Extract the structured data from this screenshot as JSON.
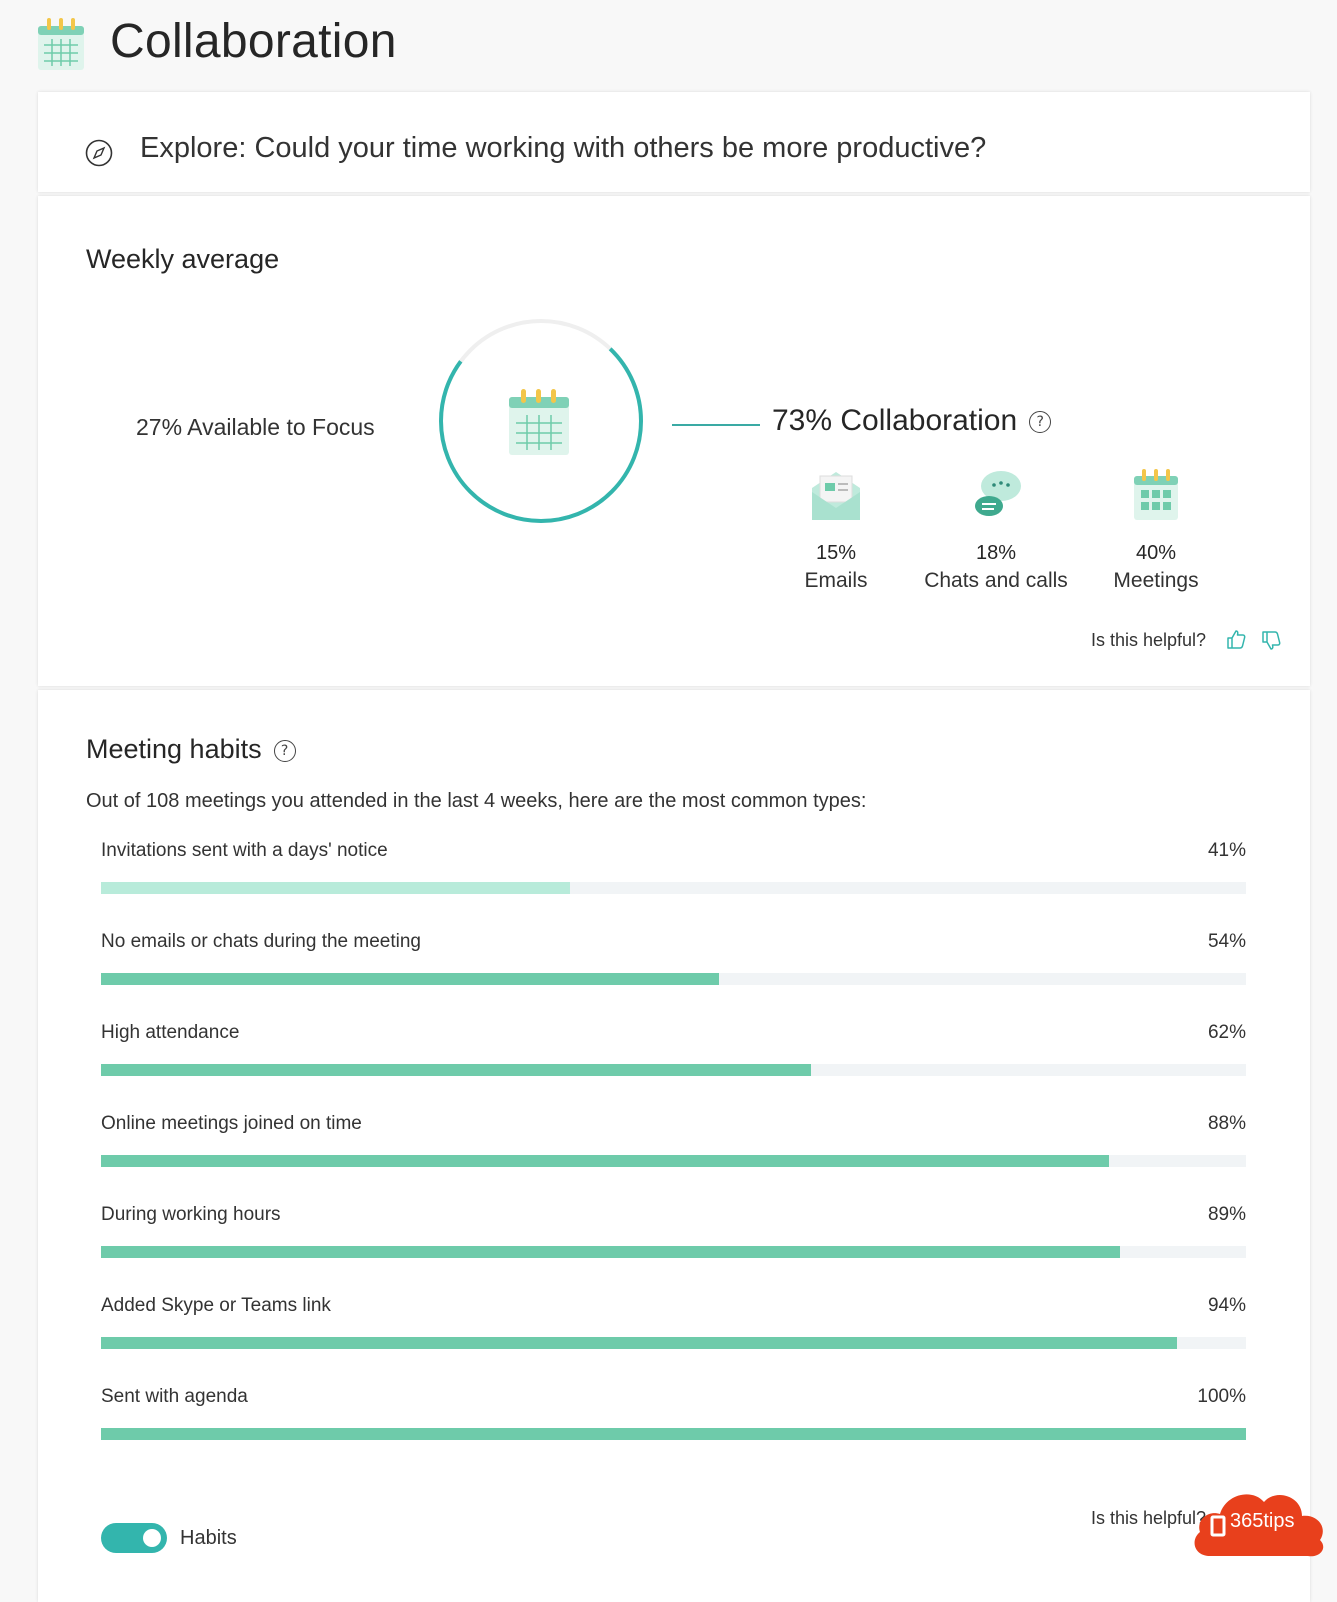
{
  "header": {
    "title": "Collaboration"
  },
  "explore": {
    "question": "Explore: Could your time working with others be more productive?"
  },
  "weekly": {
    "title": "Weekly average",
    "focus_pct": 27,
    "focus_label": "27% Available to Focus",
    "collab_pct_label": "73%",
    "collab_label": "Collaboration",
    "items": [
      {
        "pct": "15%",
        "label": "Emails"
      },
      {
        "pct": "18%",
        "label": "Chats and calls"
      },
      {
        "pct": "40%",
        "label": "Meetings"
      }
    ],
    "helpful": "Is this helpful?"
  },
  "habits": {
    "title": "Meeting habits",
    "intro": "Out of 108 meetings you attended in the last 4 weeks, here are the most common types:",
    "rows": [
      {
        "label": "Invitations sent with a days' notice",
        "value": "41%",
        "pct": 41
      },
      {
        "label": "No emails or chats during the meeting",
        "value": "54%",
        "pct": 54
      },
      {
        "label": "High attendance",
        "value": "62%",
        "pct": 62
      },
      {
        "label": "Online meetings joined on time",
        "value": "88%",
        "pct": 88
      },
      {
        "label": "During working hours",
        "value": "89%",
        "pct": 89
      },
      {
        "label": "Added Skype or Teams link",
        "value": "94%",
        "pct": 94
      },
      {
        "label": "Sent with agenda",
        "value": "100%",
        "pct": 100
      }
    ],
    "toggle_label": "Habits",
    "toggle_on": true,
    "helpful": "Is this helpful?"
  },
  "watermark": {
    "text": "365tips"
  },
  "colors": {
    "accent": "#33b5ad",
    "bar": "#6ecbaa",
    "bar_light": "#b8ebda",
    "track": "#f1f4f6",
    "badge": "#e8401c"
  }
}
